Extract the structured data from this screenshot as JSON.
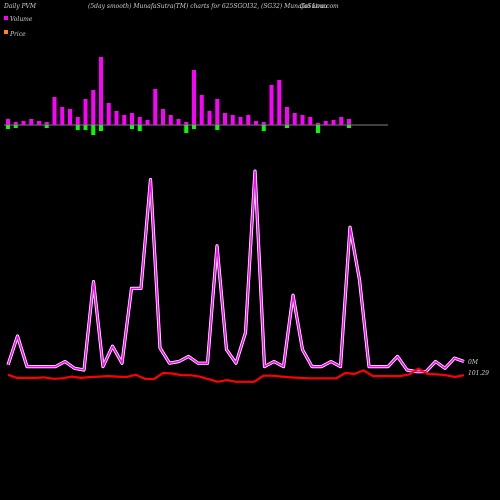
{
  "header": {
    "left": "Daily PVM",
    "center": "(5day smooth) MunafaSutra(TM) charts for 625SGOI32, (SG32) MunafaSutra.com",
    "right": "Goi  Loan"
  },
  "legend": [
    {
      "label": "Volume",
      "color": "#ff00ff"
    },
    {
      "label": "Price",
      "color": "#ff8c00"
    }
  ],
  "colors": {
    "background": "#000000",
    "bar_up": "#ff00ff",
    "bar_down": "#00ff00",
    "volume_line": "#ff00ff",
    "volume_line_glow": "#ffffff",
    "price_line": "#ff0000",
    "baseline": "#808080"
  },
  "chart_data": {
    "type": "line",
    "bar_up": [
      6,
      3,
      4,
      6,
      4,
      3,
      28,
      18,
      16,
      8,
      26,
      35,
      68,
      22,
      14,
      10,
      12,
      8,
      5,
      36,
      16,
      10,
      6,
      3,
      55,
      30,
      14,
      26,
      12,
      10,
      8,
      10,
      4,
      3,
      40,
      45,
      18,
      12,
      10,
      8,
      2,
      4,
      5,
      8,
      6
    ],
    "bar_down": [
      4,
      3,
      0,
      0,
      0,
      3,
      0,
      0,
      0,
      5,
      5,
      10,
      6,
      0,
      0,
      0,
      4,
      6,
      0,
      0,
      0,
      0,
      0,
      8,
      4,
      0,
      0,
      5,
      0,
      0,
      0,
      0,
      0,
      6,
      0,
      0,
      3,
      0,
      0,
      0,
      8,
      0,
      0,
      0,
      3
    ],
    "volume_line": [
      3,
      20,
      2,
      2,
      2,
      2,
      5,
      1,
      0,
      52,
      2,
      14,
      4,
      48,
      48,
      112,
      13,
      4,
      5,
      8,
      4,
      4,
      73,
      12,
      4,
      22,
      117,
      2,
      5,
      2,
      44,
      12,
      2,
      2,
      5,
      2,
      84,
      53,
      2,
      2,
      2,
      8,
      0,
      -1,
      -1,
      5,
      1,
      7,
      5
    ],
    "price_line": [
      101.8,
      101.1,
      101.1,
      101.1,
      101.2,
      100.9,
      101.0,
      101.4,
      101.1,
      101.3,
      101.4,
      101.5,
      101.4,
      101.3,
      101.8,
      100.9,
      100.8,
      102.2,
      102.1,
      101.7,
      101.7,
      101.4,
      100.8,
      100.2,
      100.6,
      100.2,
      100.2,
      100.2,
      101.6,
      101.6,
      101.4,
      101.2,
      101.1,
      101.0,
      101.0,
      101.0,
      101.0,
      102.2,
      102.0,
      102.8,
      101.5,
      101.5,
      101.5,
      101.5,
      101.9,
      103.2,
      102.0,
      101.9,
      101.7,
      101.3,
      101.7
    ],
    "volume_label": "0M",
    "price_label": "101.29"
  }
}
